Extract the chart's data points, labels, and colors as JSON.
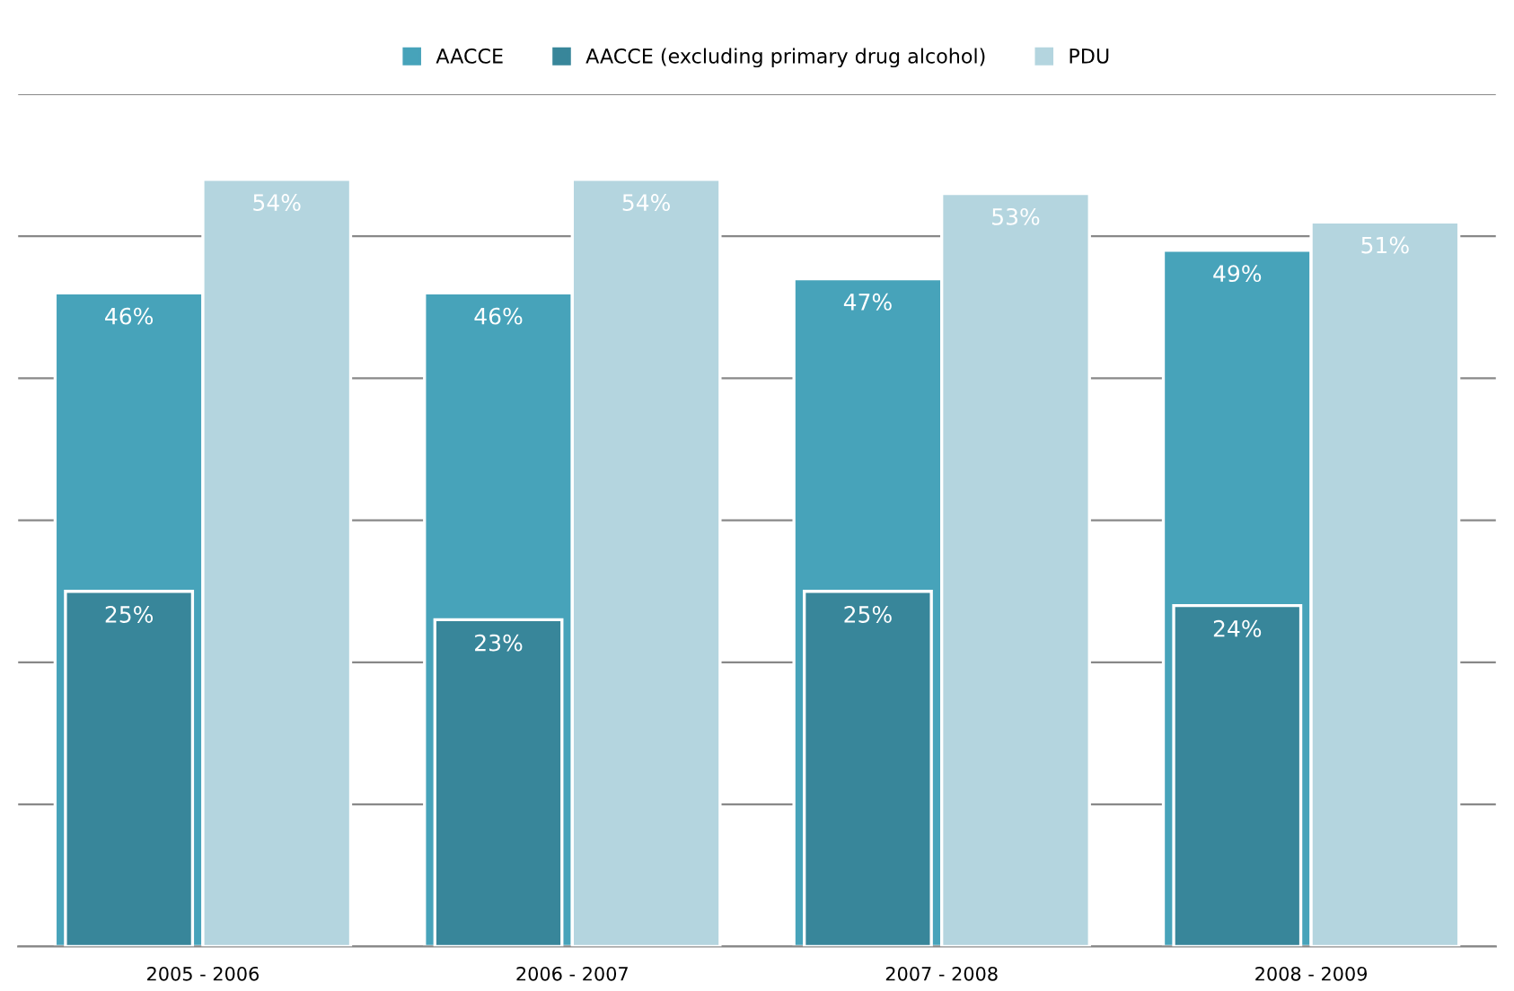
{
  "chart_data": {
    "type": "bar",
    "categories": [
      "2005 - 2006",
      "2006 - 2007",
      "2007 - 2008",
      "2008 - 2009"
    ],
    "series": [
      {
        "name": "AACCE",
        "color": "#47a3ba",
        "values": [
          46,
          46,
          47,
          49
        ],
        "value_labels": [
          "46%",
          "46%",
          "47%",
          "49%"
        ]
      },
      {
        "name": "AACCE (excluding primary drug alcohol)",
        "color": "#38869a",
        "values": [
          25,
          23,
          25,
          24
        ],
        "value_labels": [
          "25%",
          "23%",
          "25%",
          "24%"
        ]
      },
      {
        "name": "PDU",
        "color": "#b4d5df",
        "values": [
          54,
          54,
          53,
          51
        ],
        "value_labels": [
          "54%",
          "54%",
          "53%",
          "51%"
        ]
      }
    ],
    "ylim": [
      0,
      60
    ],
    "yticks": [
      {
        "value": 0,
        "label": null
      },
      {
        "value": 10,
        "label": null
      },
      {
        "value": 20,
        "label": null
      },
      {
        "value": 30,
        "label": null
      },
      {
        "value": 40,
        "label": null
      },
      {
        "value": 50,
        "label": null
      },
      {
        "value": 60,
        "label": null
      }
    ],
    "tick_labels": "x",
    "grid": "y",
    "legend": "top"
  }
}
